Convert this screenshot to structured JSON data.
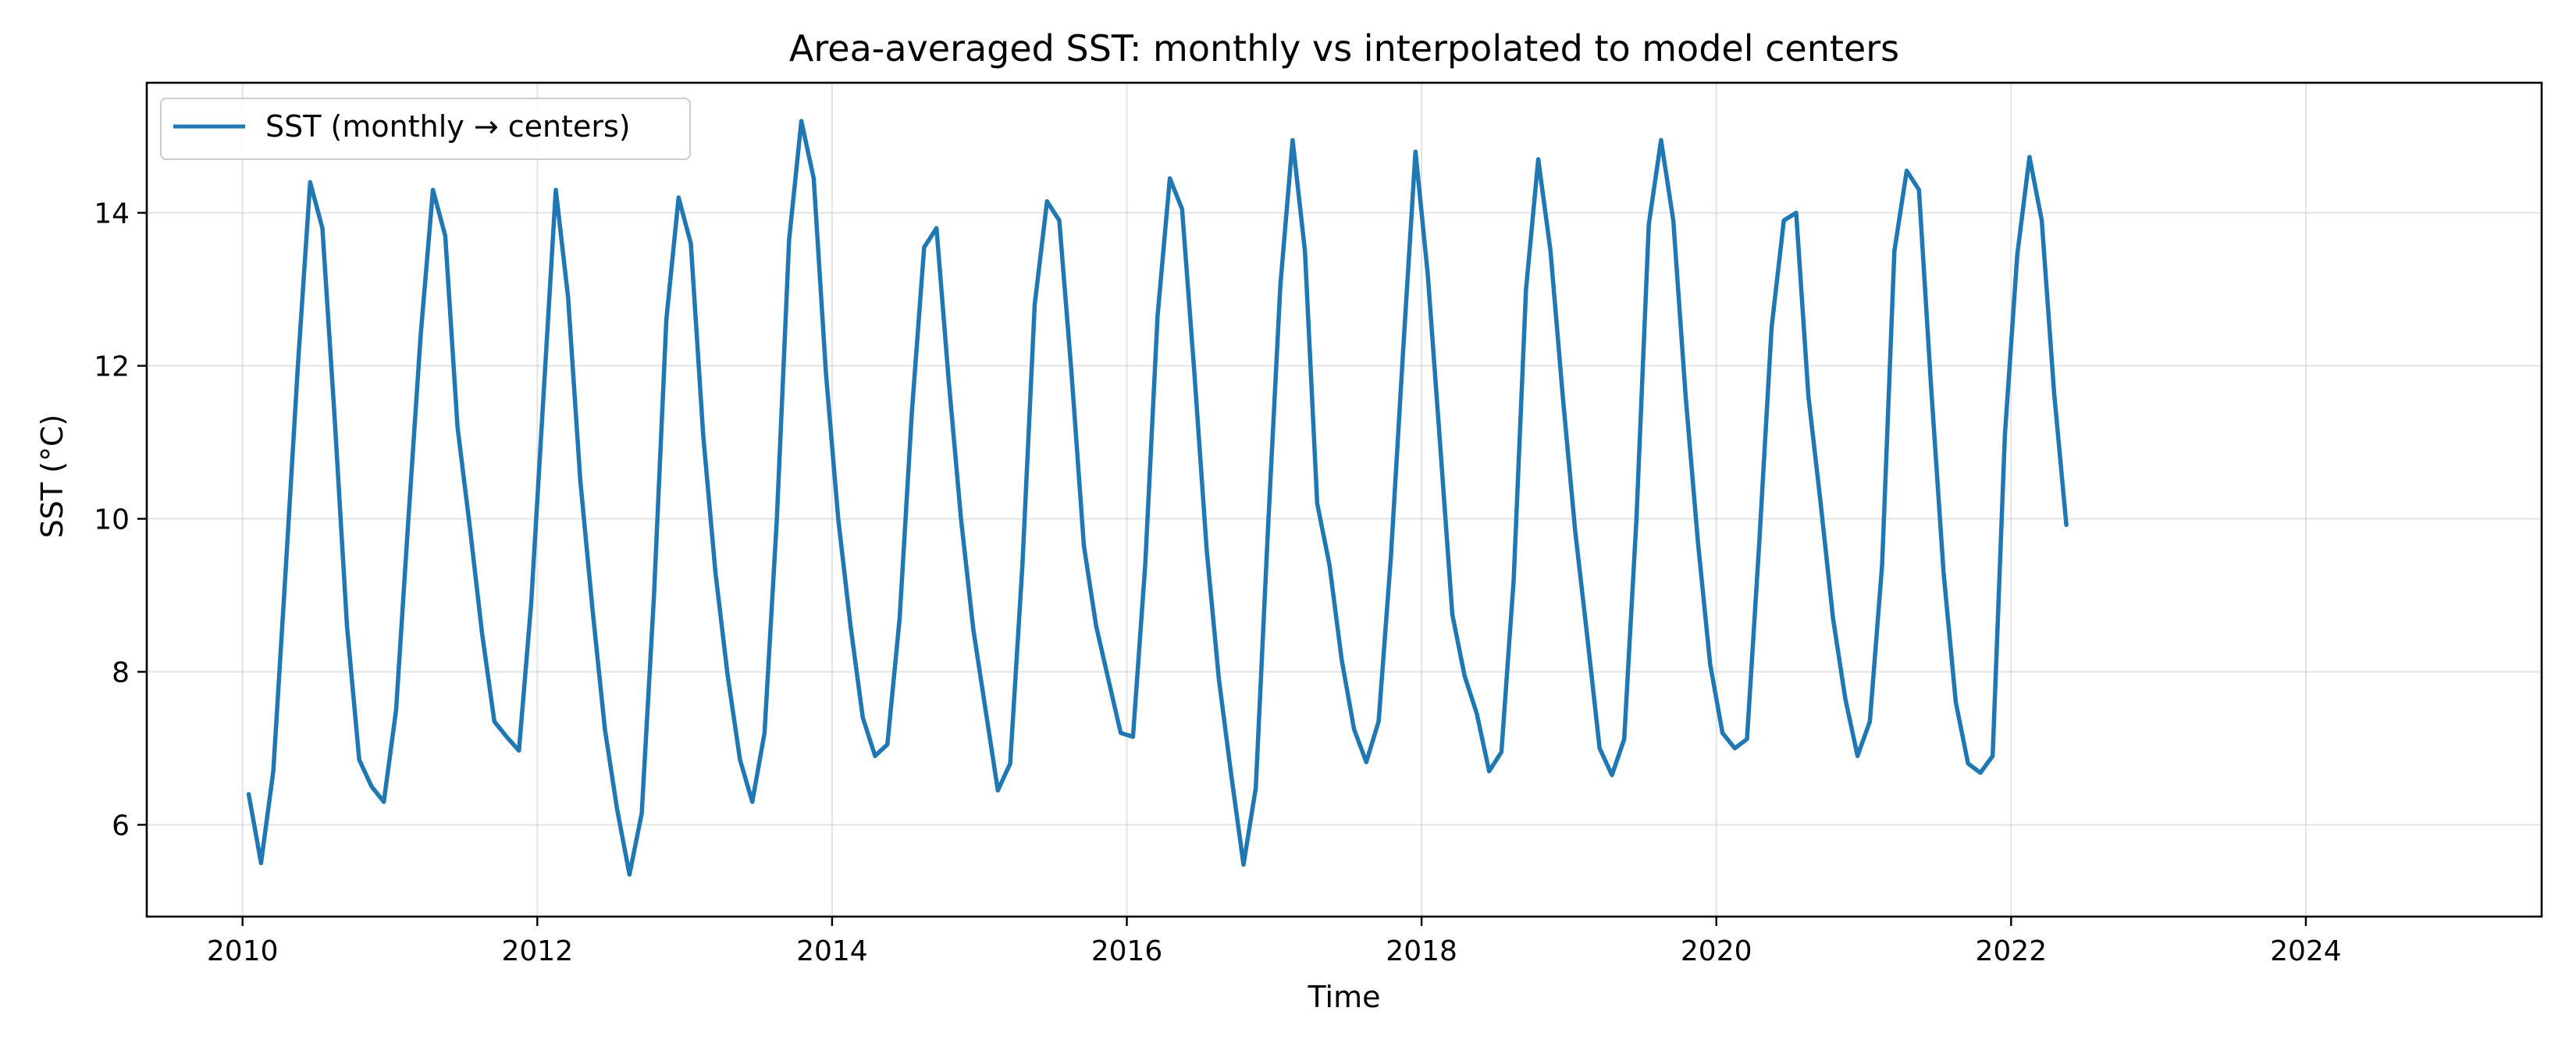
{
  "chart_data": {
    "type": "line",
    "title": "Area-averaged SST: monthly vs interpolated to model centers",
    "xlabel": "Time",
    "ylabel": "SST (°C)",
    "xlim": [
      2009.35,
      2025.6
    ],
    "ylim": [
      4.8,
      15.7
    ],
    "xticks": [
      2010,
      2012,
      2014,
      2016,
      2018,
      2020,
      2022,
      2024
    ],
    "xtick_labels": [
      "2010",
      "2012",
      "2014",
      "2016",
      "2018",
      "2020",
      "2022",
      "2024"
    ],
    "yticks": [
      6,
      8,
      10,
      12,
      14
    ],
    "ytick_labels": [
      "6",
      "8",
      "10",
      "12",
      "14"
    ],
    "grid": true,
    "legend": "upper-left",
    "series": [
      {
        "name": "SST (monthly → centers)",
        "color": "#1f77b4",
        "x_start": 2010.042,
        "x_step": 0.08333,
        "values": [
          6.4,
          5.5,
          6.7,
          9.3,
          12.0,
          14.4,
          13.8,
          11.3,
          8.6,
          6.85,
          6.5,
          6.3,
          7.5,
          10.0,
          12.4,
          14.3,
          13.7,
          11.2,
          9.9,
          8.5,
          7.35,
          7.15,
          6.97,
          8.9,
          11.6,
          14.3,
          12.9,
          10.5,
          8.8,
          7.25,
          6.2,
          5.35,
          6.15,
          9.0,
          12.6,
          14.2,
          13.6,
          11.1,
          9.3,
          7.95,
          6.85,
          6.3,
          7.2,
          10.0,
          13.65,
          15.2,
          14.45,
          11.9,
          10.0,
          8.6,
          7.4,
          6.9,
          7.05,
          8.7,
          11.4,
          13.55,
          13.8,
          11.8,
          10.0,
          8.55,
          7.5,
          6.45,
          6.8,
          9.4,
          12.8,
          14.15,
          13.9,
          11.9,
          9.65,
          8.6,
          7.9,
          7.2,
          7.15,
          9.4,
          12.65,
          14.45,
          14.05,
          11.9,
          9.6,
          7.9,
          6.65,
          5.48,
          6.48,
          9.9,
          13.05,
          14.95,
          13.5,
          10.2,
          9.4,
          8.15,
          7.25,
          6.82,
          7.35,
          9.5,
          12.2,
          14.8,
          13.2,
          11.0,
          8.75,
          7.95,
          7.45,
          6.7,
          6.95,
          9.2,
          13.0,
          14.7,
          13.5,
          11.6,
          9.85,
          8.45,
          7.0,
          6.65,
          7.12,
          10.0,
          13.85,
          14.95,
          13.9,
          11.6,
          9.7,
          8.1,
          7.2,
          7.0,
          7.12,
          9.7,
          12.5,
          13.9,
          14.0,
          11.6,
          10.2,
          8.7,
          7.65,
          6.9,
          7.35,
          9.4,
          13.5,
          14.55,
          14.3,
          11.7,
          9.3,
          7.6,
          6.8,
          6.68,
          6.9,
          11.1,
          13.45,
          14.73,
          13.9,
          11.65,
          9.92
        ]
      }
    ]
  }
}
